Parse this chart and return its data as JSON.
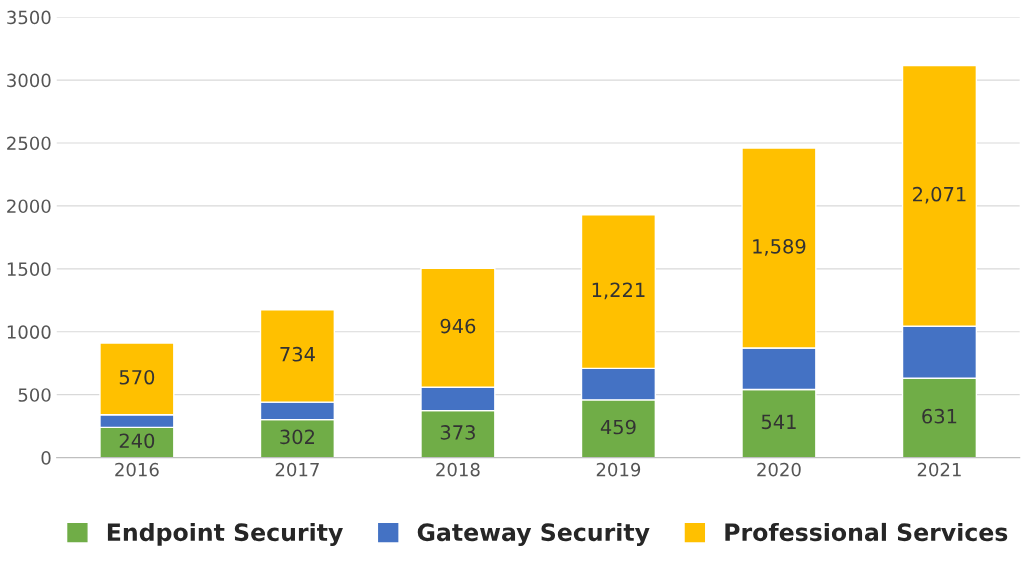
{
  "chart_data": {
    "type": "bar",
    "stacked": true,
    "categories": [
      "2016",
      "2017",
      "2018",
      "2019",
      "2020",
      "2021"
    ],
    "series": [
      {
        "name": "Endpoint Security",
        "color": "#70ad47",
        "values": [
          240,
          302,
          373,
          459,
          541,
          631
        ],
        "value_labels": [
          "240",
          "302",
          "373",
          "459",
          "541",
          "631"
        ]
      },
      {
        "name": "Gateway Security",
        "color": "#4472c4",
        "values": [
          100,
          139,
          186,
          250,
          330,
          413
        ]
      },
      {
        "name": "Professional Services",
        "color": "#ffc000",
        "values": [
          570,
          734,
          946,
          1221,
          1589,
          2071
        ],
        "value_labels": [
          "570",
          "734",
          "946",
          "1,221",
          "1,589",
          "2,071"
        ]
      }
    ],
    "ylim": [
      0,
      3500
    ],
    "yticks": [
      0,
      500,
      1000,
      1500,
      2000,
      2500,
      3000,
      3500
    ],
    "grid": "y",
    "legend": "bottom"
  }
}
